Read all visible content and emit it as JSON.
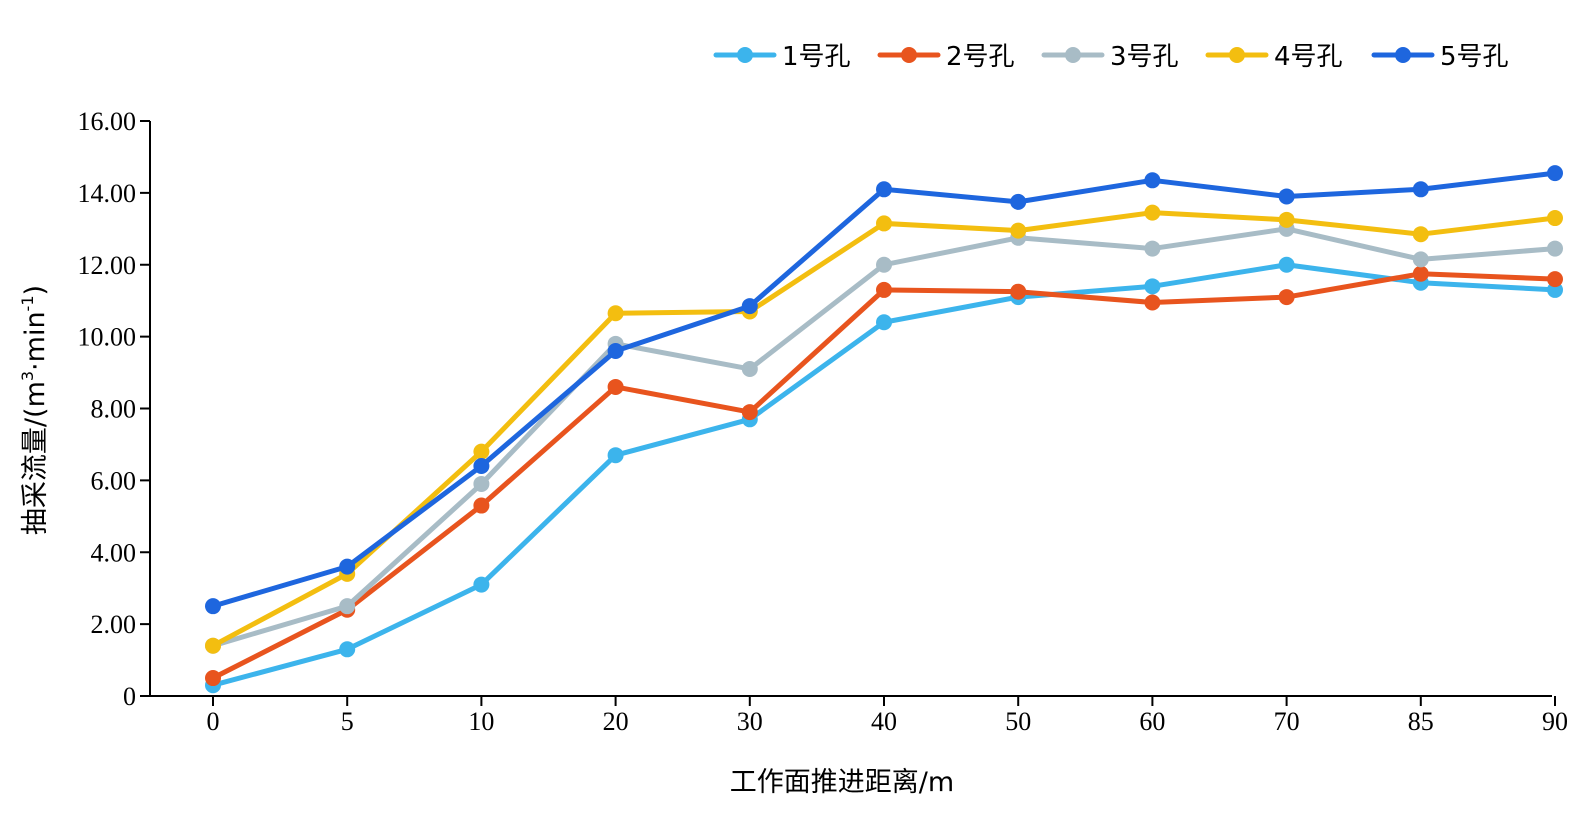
{
  "chart_data": {
    "type": "line",
    "xlabel": "工作面推进距离/m",
    "ylabel": "抽采流量/(m",
    "ylabel_sup1": "3",
    "ylabel_mid": "·min",
    "ylabel_sup2": "-1",
    "ylabel_end": ")",
    "ylim": [
      0,
      16
    ],
    "yticks": [
      "0",
      "2.00",
      "4.00",
      "6.00",
      "8.00",
      "10.00",
      "12.00",
      "14.00",
      "16.00"
    ],
    "ytick_values": [
      0,
      2,
      4,
      6,
      8,
      10,
      12,
      14,
      16
    ],
    "categories": [
      "0",
      "5",
      "10",
      "20",
      "30",
      "40",
      "50",
      "60",
      "70",
      "85",
      "90"
    ],
    "legend_position": "top-right",
    "grid": false,
    "series": [
      {
        "name": "1号孔",
        "color": "#3cb4ec",
        "values": [
          0.3,
          1.3,
          3.1,
          6.7,
          7.7,
          10.4,
          11.1,
          11.4,
          12.0,
          11.5,
          11.3
        ]
      },
      {
        "name": "2号孔",
        "color": "#e8541e",
        "values": [
          0.5,
          2.4,
          5.3,
          8.6,
          7.9,
          11.3,
          11.25,
          10.95,
          11.1,
          11.75,
          11.6
        ]
      },
      {
        "name": "3号孔",
        "color": "#a8bcc6",
        "values": [
          1.4,
          2.5,
          5.9,
          9.8,
          9.1,
          12.0,
          12.75,
          12.45,
          13.0,
          12.15,
          12.45
        ]
      },
      {
        "name": "4号孔",
        "color": "#f3be10",
        "values": [
          1.4,
          3.4,
          6.8,
          10.65,
          10.7,
          13.15,
          12.95,
          13.45,
          13.25,
          12.85,
          13.3
        ]
      },
      {
        "name": "5号孔",
        "color": "#1e66de",
        "values": [
          2.5,
          3.6,
          6.4,
          9.6,
          10.85,
          14.1,
          13.75,
          14.35,
          13.9,
          14.1,
          14.55
        ]
      }
    ]
  }
}
